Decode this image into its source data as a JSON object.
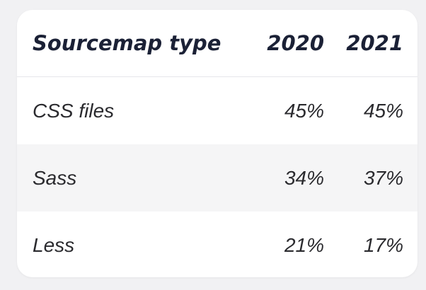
{
  "table": {
    "header": [
      "Sourcemap type",
      "2020",
      "2021"
    ],
    "rows": [
      [
        "CSS files",
        "45%",
        "45%"
      ],
      [
        "Sass",
        "34%",
        "37%"
      ],
      [
        "Less",
        "21%",
        "17%"
      ]
    ]
  }
}
